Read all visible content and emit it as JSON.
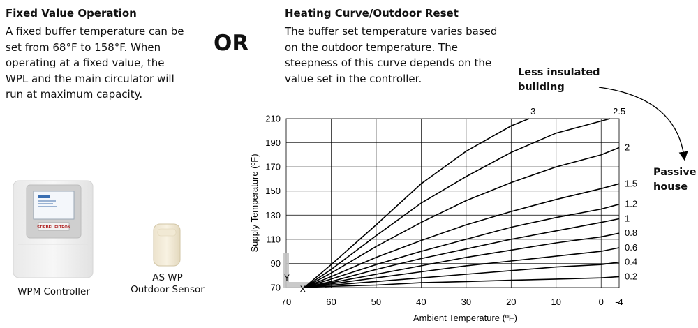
{
  "left": {
    "title": "Fixed Value Operation",
    "lines": [
      "A fixed buffer temperature can be",
      "set from 68°F to 158°F. When",
      "operating at a fixed value, the",
      "WPL and the main circulator will",
      "run at maximum capacity."
    ]
  },
  "or_label": "OR",
  "right": {
    "title": "Heating Curve/Outdoor Reset",
    "lines": [
      "The buffer set temperature varies based",
      "on the outdoor temperature. The",
      "steepness of this curve depends on the",
      "value set in the controller."
    ]
  },
  "annotation": {
    "less_insulated": [
      "Less insulated",
      "building"
    ],
    "passive": [
      "Passive",
      "house"
    ]
  },
  "devices": {
    "controller_brand": "STIEBEL ELTRON",
    "controller_caption": "WPM Controller",
    "sensor_caption": [
      "AS WP",
      "Outdoor Sensor"
    ]
  },
  "colors": {
    "curve": "#000000",
    "grid": "#000000",
    "arrow": "#000000",
    "axis_marker": "#c4c4c4"
  },
  "chart_data": {
    "type": "line",
    "xlabel": "Ambient Temperature (ºF)",
    "ylabel": "Supply Temperature (ºF)",
    "xlim": [
      70,
      -4
    ],
    "ylim": [
      70,
      210
    ],
    "x_ticks": [
      "70",
      "60",
      "50",
      "40",
      "30",
      "20",
      "10",
      "0",
      "-4"
    ],
    "y_ticks": [
      "70",
      "90",
      "110",
      "130",
      "150",
      "170",
      "190",
      "210"
    ],
    "grid": true,
    "origin_labels": {
      "x": "X",
      "y": "Y"
    },
    "series": [
      {
        "name": "3",
        "x": [
          66,
          60,
          50,
          40,
          30,
          20,
          16
        ],
        "y": [
          70,
          89,
          122,
          156,
          183,
          204,
          210
        ]
      },
      {
        "name": "2.5",
        "x": [
          66,
          60,
          50,
          40,
          30,
          20,
          10,
          0,
          -2
        ],
        "y": [
          70,
          85,
          113,
          140,
          162,
          182,
          198,
          208,
          210
        ]
      },
      {
        "name": "2",
        "x": [
          66,
          60,
          50,
          40,
          30,
          20,
          10,
          0,
          -4
        ],
        "y": [
          70,
          82,
          104,
          124,
          142,
          157,
          170,
          180,
          186
        ]
      },
      {
        "name": "1.5",
        "x": [
          66,
          60,
          50,
          40,
          30,
          20,
          10,
          0,
          -4
        ],
        "y": [
          70,
          79,
          95,
          109,
          122,
          133,
          143,
          152,
          156
        ]
      },
      {
        "name": "1.2",
        "x": [
          66,
          60,
          50,
          40,
          30,
          20,
          10,
          0,
          -4
        ],
        "y": [
          70,
          77,
          89,
          100,
          110,
          120,
          128,
          135,
          139
        ]
      },
      {
        "name": "1",
        "x": [
          66,
          60,
          50,
          40,
          30,
          20,
          10,
          0,
          -4
        ],
        "y": [
          70,
          75,
          85,
          94,
          102,
          110,
          117,
          124,
          127
        ]
      },
      {
        "name": "0.8",
        "x": [
          66,
          60,
          50,
          40,
          30,
          20,
          10,
          0,
          -4
        ],
        "y": [
          70,
          74,
          81,
          88,
          95,
          101,
          107,
          112,
          115
        ]
      },
      {
        "name": "0.6",
        "x": [
          66,
          60,
          50,
          40,
          30,
          20,
          10,
          0,
          -4
        ],
        "y": [
          70,
          73,
          78,
          83,
          88,
          92,
          96,
          100,
          103
        ]
      },
      {
        "name": "0.4",
        "x": [
          66,
          60,
          50,
          40,
          30,
          20,
          10,
          0,
          -4
        ],
        "y": [
          70,
          72,
          75,
          78,
          81,
          84,
          87,
          89,
          91
        ]
      },
      {
        "name": "0.2",
        "x": [
          66,
          60,
          50,
          40,
          30,
          20,
          10,
          0,
          -4
        ],
        "y": [
          70,
          71,
          72,
          74,
          75,
          76,
          77,
          78,
          79
        ]
      }
    ]
  }
}
